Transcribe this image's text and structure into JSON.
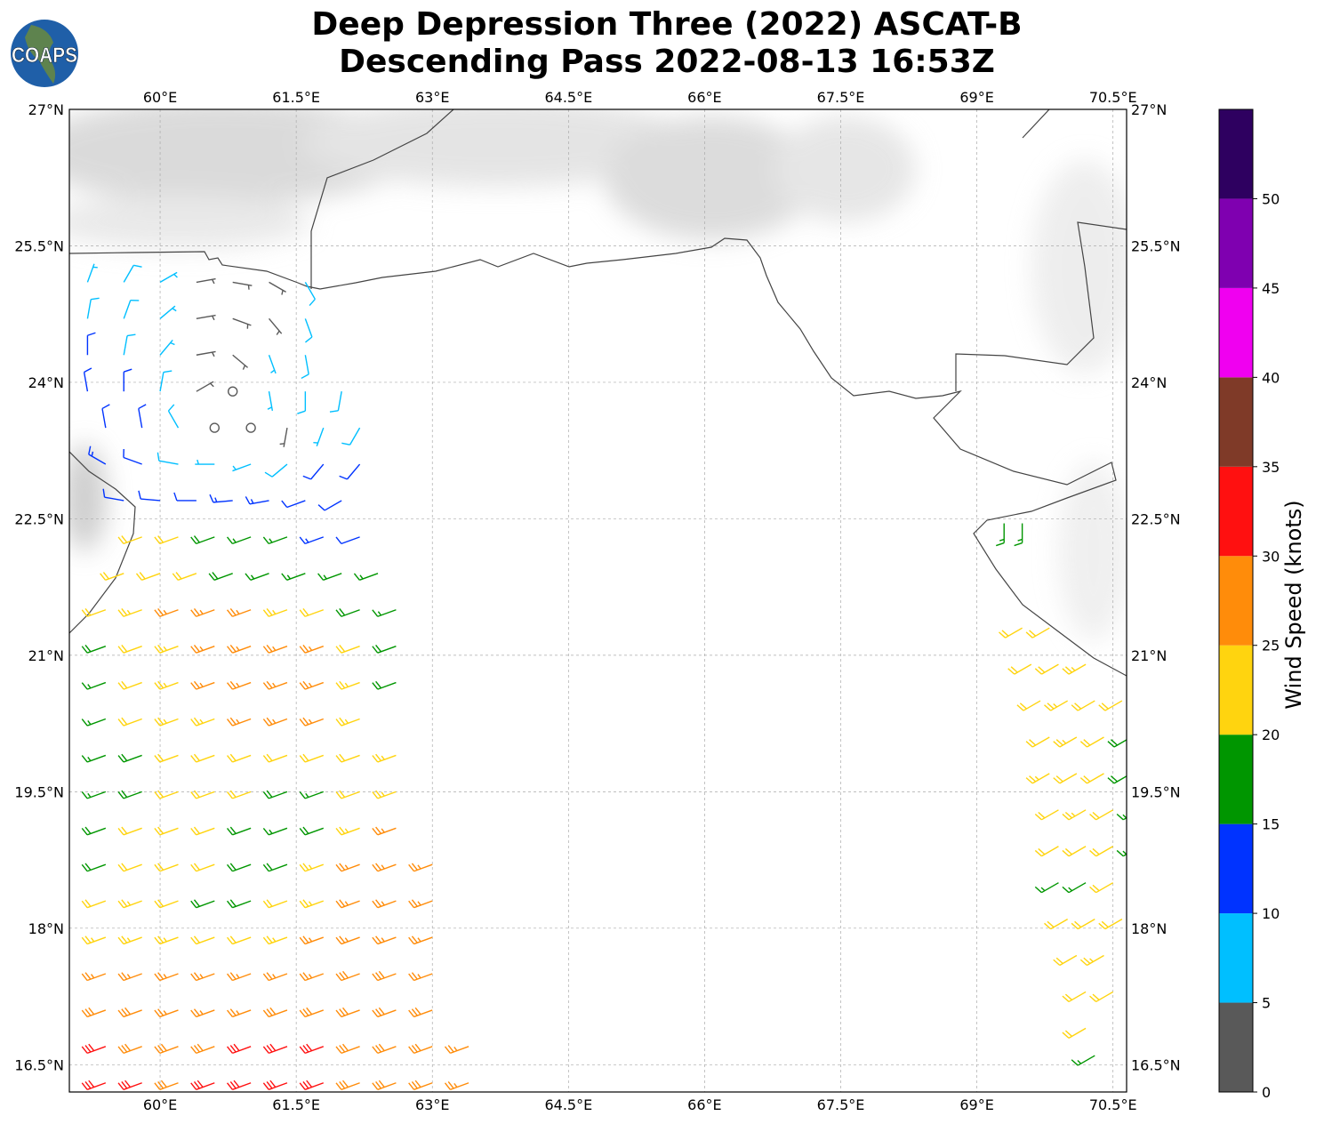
{
  "header": {
    "title_line1": "Deep Depression Three (2022) ASCAT-B",
    "title_line2": "Descending Pass 2022-08-13 16:53Z",
    "logo_text": "COAPS"
  },
  "chart_data": {
    "type": "wind-barb-map",
    "lon_range": [
      59.0,
      70.65
    ],
    "lat_range": [
      16.2,
      27.0
    ],
    "lon_ticks": [
      60,
      61.5,
      63,
      64.5,
      66,
      67.5,
      69,
      70.5
    ],
    "lon_tick_labels": [
      "60°E",
      "61.5°E",
      "63°E",
      "64.5°E",
      "66°E",
      "67.5°E",
      "69°E",
      "70.5°E"
    ],
    "lat_ticks": [
      27,
      25.5,
      24,
      22.5,
      21,
      19.5,
      18,
      16.5
    ],
    "lat_tick_labels": [
      "27°N",
      "25.5°N",
      "24°N",
      "22.5°N",
      "21°N",
      "19.5°N",
      "18°N",
      "16.5°N"
    ],
    "grid": true,
    "colorbar": {
      "label": "Wind Speed (knots)",
      "bounds": [
        0,
        5,
        10,
        15,
        20,
        25,
        30,
        35,
        40,
        45,
        50,
        55
      ],
      "tick_labels": [
        "0",
        "5",
        "10",
        "15",
        "20",
        "25",
        "30",
        "35",
        "40",
        "45",
        "50"
      ],
      "colors": [
        "#595959",
        "#00bfff",
        "#0033ff",
        "#009600",
        "#ffd40f",
        "#ff8c0a",
        "#ff1010",
        "#7f3a28",
        "#f000f0",
        "#7f00b0",
        "#2e0060"
      ]
    },
    "wind_rows": [
      {
        "lat": 25.1,
        "lon0": 59.2,
        "step": 0.4,
        "spd": [
          7,
          8,
          7,
          3,
          3,
          4,
          8
        ],
        "dir": [
          20,
          30,
          60,
          80,
          100,
          120,
          150
        ]
      },
      {
        "lat": 24.7,
        "lon0": 59.2,
        "step": 0.4,
        "spd": [
          8,
          8,
          7,
          3,
          4,
          4,
          8
        ],
        "dir": [
          10,
          20,
          50,
          80,
          110,
          140,
          160
        ]
      },
      {
        "lat": 24.3,
        "lon0": 59.2,
        "step": 0.4,
        "spd": [
          11,
          8,
          7,
          3,
          4,
          6,
          8
        ],
        "dir": [
          0,
          10,
          40,
          80,
          130,
          160,
          170
        ]
      },
      {
        "lat": 23.9,
        "lon0": 59.2,
        "step": 0.4,
        "spd": [
          12,
          11,
          8,
          4,
          2,
          6,
          8,
          8
        ],
        "dir": [
          350,
          0,
          10,
          60,
          140,
          170,
          180,
          190
        ]
      },
      {
        "lat": 23.5,
        "lon0": 59.0,
        "step": 0.4,
        "spd": [
          13,
          12,
          11,
          8,
          2,
          2,
          4,
          6,
          8
        ],
        "dir": [
          340,
          350,
          350,
          330,
          0,
          200,
          190,
          200,
          210
        ]
      },
      {
        "lat": 23.1,
        "lon0": 59.0,
        "step": 0.4,
        "spd": [
          13,
          13,
          12,
          9,
          7,
          6,
          8,
          10,
          11
        ],
        "dir": [
          300,
          300,
          290,
          280,
          270,
          250,
          230,
          220,
          220
        ]
      },
      {
        "lat": 22.7,
        "lon0": 59.6,
        "step": 0.4,
        "spd": [
          12,
          12,
          12,
          13,
          13,
          12,
          12
        ],
        "dir": [
          280,
          275,
          270,
          265,
          260,
          250,
          240
        ]
      },
      {
        "lat": 22.3,
        "lon0": 59.8,
        "step": 0.4,
        "spd": [
          21,
          20,
          18,
          17,
          15,
          13,
          12
        ],
        "dir": 250
      },
      {
        "lat": 21.9,
        "lon0": 59.6,
        "step": 0.4,
        "spd": [
          22,
          22,
          21,
          19,
          17,
          15,
          15,
          16
        ],
        "dir": 250
      },
      {
        "lat": 21.5,
        "lon0": 59.4,
        "step": 0.4,
        "spd": [
          22,
          23,
          25,
          26,
          25,
          24,
          22,
          19,
          17
        ],
        "dir": 250
      },
      {
        "lat": 21.1,
        "lon0": 59.0,
        "step": 0.4,
        "spd": [
          17,
          18,
          22,
          24,
          26,
          27,
          26,
          25,
          22,
          18
        ],
        "dir": 250
      },
      {
        "lat": 20.7,
        "lon0": 59.0,
        "step": 0.4,
        "spd": [
          14,
          17,
          22,
          24,
          26,
          27,
          27,
          25,
          23,
          19
        ],
        "dir": 250
      },
      {
        "lat": 20.3,
        "lon0": 59.0,
        "step": 0.4,
        "spd": [
          13,
          17,
          21,
          23,
          24,
          26,
          26,
          25,
          24
        ],
        "dir": 250
      },
      {
        "lat": 19.9,
        "lon0": 59.0,
        "step": 0.4,
        "spd": [
          12,
          16,
          18,
          20,
          22,
          22,
          21,
          22,
          22,
          23
        ],
        "dir": 250
      },
      {
        "lat": 19.5,
        "lon0": 59.0,
        "step": 0.4,
        "spd": [
          14,
          17,
          19,
          21,
          22,
          22,
          18,
          17,
          21,
          23
        ],
        "dir": 250
      },
      {
        "lat": 19.1,
        "lon0": 59.0,
        "step": 0.4,
        "spd": [
          16,
          18,
          20,
          21,
          21,
          18,
          17,
          19,
          23,
          25
        ],
        "dir": 250
      },
      {
        "lat": 18.7,
        "lon0": 59.0,
        "step": 0.4,
        "spd": [
          19,
          19,
          21,
          22,
          21,
          18,
          19,
          23,
          25,
          26,
          27
        ],
        "dir": 250
      },
      {
        "lat": 18.3,
        "lon0": 59.0,
        "step": 0.4,
        "spd": [
          21,
          22,
          23,
          22,
          19,
          18,
          22,
          24,
          26,
          27,
          27
        ],
        "dir": 250
      },
      {
        "lat": 17.9,
        "lon0": 59.0,
        "step": 0.4,
        "spd": [
          25,
          24,
          24,
          23,
          21,
          22,
          24,
          26,
          27,
          27,
          26
        ],
        "dir": 250
      },
      {
        "lat": 17.5,
        "lon0": 59.0,
        "step": 0.4,
        "spd": [
          27,
          27,
          27,
          26,
          25,
          25,
          26,
          27,
          28,
          28,
          27
        ],
        "dir": 250
      },
      {
        "lat": 17.1,
        "lon0": 59.0,
        "step": 0.4,
        "spd": [
          29,
          28,
          28,
          27,
          27,
          27,
          28,
          29,
          28,
          28,
          28
        ],
        "dir": 250
      },
      {
        "lat": 16.7,
        "lon0": 59.0,
        "step": 0.4,
        "spd": [
          31,
          30,
          29,
          28,
          29,
          30,
          31,
          30,
          29,
          28,
          28,
          27
        ],
        "dir": 250
      },
      {
        "lat": 16.3,
        "lon0": 59.0,
        "step": 0.4,
        "spd": [
          32,
          31,
          30,
          29,
          30,
          31,
          32,
          31,
          29,
          28,
          28,
          27
        ],
        "dir": 250
      },
      {
        "lat": 22.45,
        "lon0": 69.3,
        "step": 0.2,
        "spd": [
          16,
          16
        ],
        "dir": 180
      },
      {
        "lat": 21.3,
        "lon0": 69.5,
        "step": 0.3,
        "spd": [
          22,
          22
        ],
        "dir": 240
      },
      {
        "lat": 20.9,
        "lon0": 69.6,
        "step": 0.3,
        "spd": [
          22,
          22,
          23
        ],
        "dir": 240
      },
      {
        "lat": 20.5,
        "lon0": 69.7,
        "step": 0.3,
        "spd": [
          22,
          23,
          22,
          22
        ],
        "dir": 240
      },
      {
        "lat": 20.1,
        "lon0": 69.8,
        "step": 0.3,
        "spd": [
          22,
          23,
          22,
          18
        ],
        "dir": 240
      },
      {
        "lat": 19.7,
        "lon0": 69.8,
        "step": 0.3,
        "spd": [
          23,
          22,
          22,
          18
        ],
        "dir": 240
      },
      {
        "lat": 19.3,
        "lon0": 69.9,
        "step": 0.3,
        "spd": [
          22,
          23,
          22,
          17
        ],
        "dir": 240
      },
      {
        "lat": 18.9,
        "lon0": 69.9,
        "step": 0.3,
        "spd": [
          21,
          22,
          21,
          17
        ],
        "dir": 240
      },
      {
        "lat": 18.5,
        "lon0": 69.9,
        "step": 0.3,
        "spd": [
          16,
          17,
          21
        ],
        "dir": 240
      },
      {
        "lat": 18.1,
        "lon0": 70.0,
        "step": 0.3,
        "spd": [
          22,
          22,
          22
        ],
        "dir": 240
      },
      {
        "lat": 17.7,
        "lon0": 70.1,
        "step": 0.3,
        "spd": [
          22,
          23
        ],
        "dir": 240
      },
      {
        "lat": 17.3,
        "lon0": 70.2,
        "step": 0.3,
        "spd": [
          22,
          22
        ],
        "dir": 240
      },
      {
        "lat": 16.9,
        "lon0": 70.2,
        "step": 0.3,
        "spd": [
          22
        ],
        "dir": 240
      },
      {
        "lat": 16.6,
        "lon0": 70.3,
        "step": 0.3,
        "spd": [
          17
        ],
        "dir": 240
      }
    ]
  }
}
